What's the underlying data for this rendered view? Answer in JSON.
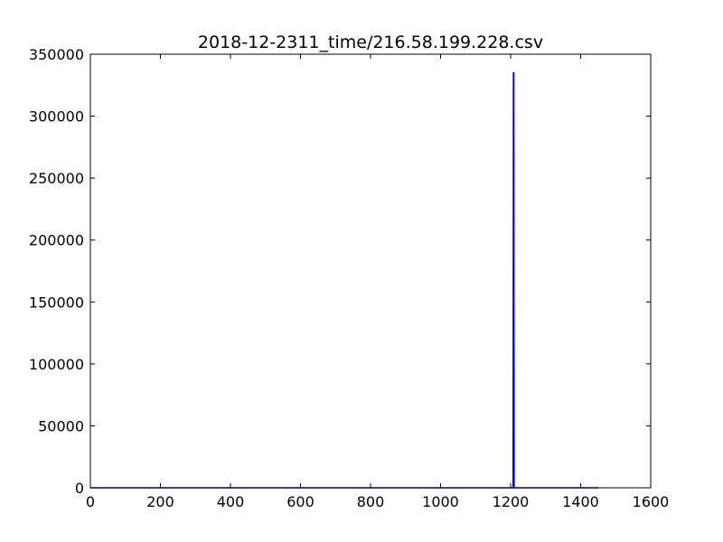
{
  "chart_data": {
    "type": "line",
    "title": "2018-12-2311_time/216.58.199.228.csv",
    "xlabel": "",
    "ylabel": "",
    "xlim": [
      0,
      1600
    ],
    "ylim": [
      0,
      350000
    ],
    "x_ticks": [
      "0",
      "200",
      "400",
      "600",
      "800",
      "1000",
      "1200",
      "1400",
      "1600"
    ],
    "y_ticks": [
      "0",
      "50000",
      "100000",
      "150000",
      "200000",
      "250000",
      "300000",
      "350000"
    ],
    "grid": false,
    "legend": "none",
    "series": [
      {
        "color": "#0000ff",
        "x": [
          0,
          1205,
          1206,
          1207,
          1208,
          1209,
          1210,
          1211,
          1212,
          1213,
          1450
        ],
        "y": [
          0,
          0,
          0,
          0,
          335000,
          335000,
          0,
          0,
          0,
          0,
          0
        ]
      }
    ]
  }
}
